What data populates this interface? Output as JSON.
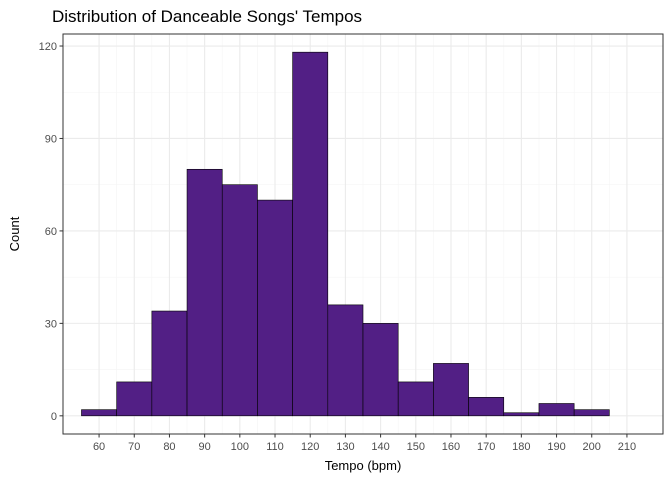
{
  "chart_data": {
    "type": "bar",
    "title": "Distribution of Danceable Songs' Tempos",
    "xlabel": "Tempo (bpm)",
    "ylabel": "Count",
    "bin_width": 10,
    "bins": [
      {
        "start": 55,
        "end": 65,
        "count": 2
      },
      {
        "start": 65,
        "end": 75,
        "count": 11
      },
      {
        "start": 75,
        "end": 85,
        "count": 34
      },
      {
        "start": 85,
        "end": 95,
        "count": 80
      },
      {
        "start": 95,
        "end": 105,
        "count": 75
      },
      {
        "start": 105,
        "end": 115,
        "count": 70
      },
      {
        "start": 115,
        "end": 125,
        "count": 118
      },
      {
        "start": 125,
        "end": 135,
        "count": 36
      },
      {
        "start": 135,
        "end": 145,
        "count": 30
      },
      {
        "start": 145,
        "end": 155,
        "count": 11
      },
      {
        "start": 155,
        "end": 165,
        "count": 17
      },
      {
        "start": 165,
        "end": 175,
        "count": 6
      },
      {
        "start": 175,
        "end": 185,
        "count": 1
      },
      {
        "start": 185,
        "end": 195,
        "count": 4
      },
      {
        "start": 195,
        "end": 205,
        "count": 2
      }
    ],
    "x_ticks": [
      60,
      70,
      80,
      90,
      100,
      110,
      120,
      130,
      140,
      150,
      160,
      170,
      180,
      190,
      200,
      210
    ],
    "y_ticks": [
      0,
      30,
      60,
      90,
      120
    ],
    "xlim": [
      49.75,
      220.25
    ],
    "ylim": [
      -5.9,
      123.9
    ],
    "grid": true,
    "colors": {
      "bar_fill": "#521f85",
      "bar_stroke": "#000000",
      "grid_major": "#ebebeb",
      "grid_minor": "#f5f5f5",
      "panel_border": "#333333"
    }
  }
}
